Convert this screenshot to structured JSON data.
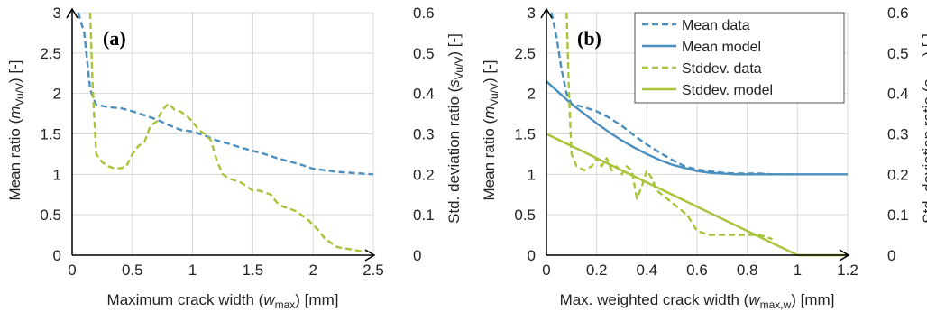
{
  "colors": {
    "mean": "#4a8fbe",
    "stddev": "#a8c43a",
    "axis": "#000000",
    "grid": "#d9d9d9"
  },
  "chart_data": [
    {
      "type": "line",
      "panel_label": "(a)",
      "xlabel": {
        "pre": "Maximum crack width (",
        "var": "w",
        "sub": "max",
        "post": ") [mm]"
      },
      "ylabel": {
        "pre": "Mean ratio (",
        "var": "m",
        "sub": "Vu/V",
        "post": ") [-]"
      },
      "y2label": {
        "pre": "Std. deviation ratio (",
        "var": "s",
        "sub": "Vu/V",
        "post": ") [-]"
      },
      "xlim": [
        0,
        2.5
      ],
      "ylim": [
        0,
        3
      ],
      "y2lim": [
        0,
        0.6
      ],
      "xticks": [
        "0",
        "0.5",
        "1",
        "1.5",
        "2",
        "2.5"
      ],
      "yticks": [
        "0",
        "0.5",
        "1",
        "1.5",
        "2",
        "2.5",
        "3"
      ],
      "y2ticks": [
        "0",
        "0.1",
        "0.2",
        "0.3",
        "0.4",
        "0.5",
        "0.6"
      ],
      "grid": true,
      "series": [
        {
          "key": "mean_data",
          "axis": "left",
          "dash": true,
          "color": "mean",
          "x": [
            0.05,
            0.1,
            0.15,
            0.2,
            0.3,
            0.4,
            0.5,
            0.6,
            0.7,
            0.8,
            0.9,
            1.0,
            1.1,
            1.2,
            1.3,
            1.4,
            1.5,
            1.6,
            1.7,
            1.8,
            1.9,
            2.0,
            2.1,
            2.2,
            2.3,
            2.4,
            2.5
          ],
          "y": [
            3.0,
            2.75,
            2.05,
            1.86,
            1.83,
            1.82,
            1.78,
            1.73,
            1.68,
            1.61,
            1.55,
            1.53,
            1.48,
            1.42,
            1.38,
            1.33,
            1.29,
            1.25,
            1.2,
            1.16,
            1.12,
            1.07,
            1.05,
            1.03,
            1.02,
            1.01,
            1.0
          ]
        },
        {
          "key": "stddev_data",
          "axis": "right",
          "dash": true,
          "color": "stddev",
          "x": [
            0.15,
            0.17,
            0.2,
            0.25,
            0.3,
            0.35,
            0.4,
            0.45,
            0.5,
            0.55,
            0.6,
            0.65,
            0.7,
            0.75,
            0.8,
            0.85,
            0.9,
            0.95,
            1.0,
            1.05,
            1.1,
            1.15,
            1.2,
            1.25,
            1.3,
            1.35,
            1.4,
            1.45,
            1.5,
            1.55,
            1.6,
            1.65,
            1.7,
            1.75,
            1.8,
            1.85,
            1.9,
            1.95,
            2.0,
            2.05,
            2.1,
            2.2,
            2.3,
            2.4,
            2.45
          ],
          "y": [
            0.6,
            0.42,
            0.25,
            0.23,
            0.22,
            0.215,
            0.215,
            0.22,
            0.25,
            0.27,
            0.28,
            0.32,
            0.33,
            0.36,
            0.375,
            0.36,
            0.355,
            0.345,
            0.33,
            0.31,
            0.3,
            0.285,
            0.235,
            0.2,
            0.19,
            0.185,
            0.18,
            0.17,
            0.16,
            0.16,
            0.155,
            0.15,
            0.13,
            0.12,
            0.115,
            0.11,
            0.1,
            0.09,
            0.075,
            0.06,
            0.04,
            0.02,
            0.015,
            0.01,
            0.01
          ]
        }
      ]
    },
    {
      "type": "line",
      "panel_label": "(b)",
      "xlabel": {
        "pre": "Max. weighted crack width (",
        "var": "w",
        "sub": "max,w",
        "post": ") [mm]"
      },
      "ylabel": {
        "pre": "Mean ratio (",
        "var": "m",
        "sub": "Vu/V",
        "post": ") [-]"
      },
      "y2label": {
        "pre": "Std. deviation ratio (",
        "var": "s",
        "sub": "Vu/V",
        "post": ") [-]"
      },
      "xlim": [
        0,
        1.2
      ],
      "ylim": [
        0,
        3
      ],
      "y2lim": [
        0,
        0.6
      ],
      "xticks": [
        "0",
        "0.2",
        "0.4",
        "0.6",
        "0.8",
        "1",
        "1.2"
      ],
      "yticks": [
        "0",
        "0.5",
        "1",
        "1.5",
        "2",
        "2.5",
        "3"
      ],
      "y2ticks": [
        "0",
        "0.1",
        "0.2",
        "0.3",
        "0.4",
        "0.5",
        "0.6"
      ],
      "grid": true,
      "legend": {
        "placement": "top-right",
        "entries": [
          "Mean data",
          "Mean model",
          "Stddev. data",
          "Stddev. model"
        ]
      },
      "series": [
        {
          "key": "mean_data",
          "label": "Mean data",
          "axis": "left",
          "dash": true,
          "color": "mean",
          "x": [
            0.02,
            0.04,
            0.06,
            0.08,
            0.1,
            0.15,
            0.2,
            0.25,
            0.3,
            0.35,
            0.4,
            0.45,
            0.5,
            0.55,
            0.6,
            0.65,
            0.7,
            0.75,
            0.8,
            0.85,
            0.9,
            0.95,
            1.0
          ],
          "y": [
            3.0,
            2.7,
            2.3,
            2.0,
            1.87,
            1.83,
            1.78,
            1.7,
            1.6,
            1.48,
            1.37,
            1.27,
            1.18,
            1.1,
            1.06,
            1.04,
            1.02,
            1.01,
            1.01,
            1.01,
            1.0,
            1.0,
            1.0
          ]
        },
        {
          "key": "mean_model",
          "label": "Mean model",
          "axis": "left",
          "dash": false,
          "color": "mean",
          "x": [
            0.0,
            0.05,
            0.1,
            0.15,
            0.2,
            0.25,
            0.3,
            0.35,
            0.4,
            0.45,
            0.5,
            0.55,
            0.6,
            0.65,
            0.7,
            0.75,
            0.8,
            0.9,
            1.0,
            1.1,
            1.2
          ],
          "y": [
            2.15,
            2.01,
            1.87,
            1.75,
            1.63,
            1.52,
            1.42,
            1.33,
            1.25,
            1.18,
            1.12,
            1.08,
            1.04,
            1.02,
            1.01,
            1.0,
            1.0,
            1.0,
            1.0,
            1.0,
            1.0
          ]
        },
        {
          "key": "stddev_data",
          "label": "Stddev. data",
          "axis": "right",
          "dash": true,
          "color": "stddev",
          "x": [
            0.08,
            0.09,
            0.1,
            0.12,
            0.15,
            0.18,
            0.2,
            0.22,
            0.24,
            0.26,
            0.28,
            0.3,
            0.32,
            0.34,
            0.36,
            0.38,
            0.4,
            0.42,
            0.44,
            0.46,
            0.48,
            0.5,
            0.52,
            0.54,
            0.56,
            0.58,
            0.6,
            0.65,
            0.7,
            0.75,
            0.8,
            0.85,
            0.9
          ],
          "y": [
            0.6,
            0.4,
            0.25,
            0.22,
            0.21,
            0.22,
            0.24,
            0.22,
            0.24,
            0.21,
            0.22,
            0.2,
            0.22,
            0.21,
            0.14,
            0.17,
            0.21,
            0.19,
            0.16,
            0.15,
            0.14,
            0.13,
            0.12,
            0.11,
            0.1,
            0.08,
            0.06,
            0.05,
            0.05,
            0.05,
            0.05,
            0.05,
            0.04
          ]
        },
        {
          "key": "stddev_model",
          "label": "Stddev. model",
          "axis": "right",
          "dash": false,
          "color": "stddev",
          "x": [
            0.0,
            1.0,
            1.2
          ],
          "y": [
            0.3,
            0.0,
            0.0
          ]
        }
      ]
    }
  ]
}
